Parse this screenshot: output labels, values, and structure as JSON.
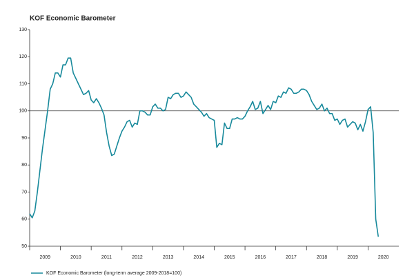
{
  "chart_data": {
    "type": "line",
    "title": "KOF Economic Barometer",
    "x": [
      2009,
      2009.083,
      2009.167,
      2009.25,
      2009.333,
      2009.417,
      2009.5,
      2009.583,
      2009.667,
      2009.75,
      2009.833,
      2009.917,
      2010,
      2010.083,
      2010.167,
      2010.25,
      2010.333,
      2010.417,
      2010.5,
      2010.583,
      2010.667,
      2010.75,
      2010.833,
      2010.917,
      2011,
      2011.083,
      2011.167,
      2011.25,
      2011.333,
      2011.417,
      2011.5,
      2011.583,
      2011.667,
      2011.75,
      2011.833,
      2011.917,
      2012,
      2012.083,
      2012.167,
      2012.25,
      2012.333,
      2012.417,
      2012.5,
      2012.583,
      2012.667,
      2012.75,
      2012.833,
      2012.917,
      2013,
      2013.083,
      2013.167,
      2013.25,
      2013.333,
      2013.417,
      2013.5,
      2013.583,
      2013.667,
      2013.75,
      2013.833,
      2013.917,
      2014,
      2014.083,
      2014.167,
      2014.25,
      2014.333,
      2014.417,
      2014.5,
      2014.583,
      2014.667,
      2014.75,
      2014.833,
      2014.917,
      2015,
      2015.083,
      2015.167,
      2015.25,
      2015.333,
      2015.417,
      2015.5,
      2015.583,
      2015.667,
      2015.75,
      2015.833,
      2015.917,
      2016,
      2016.083,
      2016.167,
      2016.25,
      2016.333,
      2016.417,
      2016.5,
      2016.583,
      2016.667,
      2016.75,
      2016.833,
      2016.917,
      2017,
      2017.083,
      2017.167,
      2017.25,
      2017.333,
      2017.417,
      2017.5,
      2017.583,
      2017.667,
      2017.75,
      2017.833,
      2017.917,
      2018,
      2018.083,
      2018.167,
      2018.25,
      2018.333,
      2018.417,
      2018.5,
      2018.583,
      2018.667,
      2018.75,
      2018.833,
      2018.917,
      2019,
      2019.083,
      2019.167,
      2019.25,
      2019.333,
      2019.417,
      2019.5,
      2019.583,
      2019.667,
      2019.75,
      2019.833,
      2019.917,
      2020,
      2020.083,
      2020.167,
      2020.25,
      2020.333
    ],
    "series": [
      {
        "name": "KOF Economic Barometer (long-term average 2009-2018=100)",
        "color": "#17899b",
        "values": [
          62,
          60.5,
          63,
          70,
          78,
          86,
          93,
          100,
          108,
          110,
          114,
          114,
          112.5,
          117,
          117,
          119.5,
          119.5,
          114,
          112,
          110,
          108,
          106,
          106.5,
          107.5,
          104,
          103,
          104.5,
          103,
          101,
          98.5,
          92,
          87,
          83.5,
          84,
          87,
          90,
          92.5,
          94,
          96,
          96.5,
          94,
          95.5,
          95,
          100,
          100,
          99.5,
          98.5,
          98.5,
          101.5,
          102.5,
          101,
          101,
          100,
          100.5,
          105,
          104.5,
          106,
          106.5,
          106.5,
          105,
          105.5,
          107,
          106,
          105,
          102.5,
          101.5,
          100.5,
          99.5,
          98,
          99,
          97.5,
          97,
          96.5,
          86.5,
          88,
          87.5,
          95.5,
          93.5,
          93.5,
          97,
          97,
          97.5,
          97,
          97,
          98,
          100,
          101.5,
          103.5,
          100.5,
          101,
          103.5,
          99,
          100.5,
          102,
          100.5,
          103.5,
          103,
          105.5,
          105,
          107,
          106.5,
          108.5,
          108,
          106.5,
          106.5,
          107,
          108,
          108,
          107.5,
          106,
          103.5,
          102,
          100.5,
          101,
          102.5,
          100,
          101,
          99,
          99,
          96.5,
          97,
          95,
          96.5,
          97,
          94,
          95,
          96,
          95.5,
          93,
          95,
          92.5,
          96,
          100.5,
          101.5,
          92,
          60,
          53.5
        ]
      }
    ],
    "xlim": [
      2009,
      2021
    ],
    "xticks": [
      {
        "value": 2009.5,
        "label": "2009"
      },
      {
        "value": 2010.5,
        "label": "2010"
      },
      {
        "value": 2011.5,
        "label": "2011"
      },
      {
        "value": 2012.5,
        "label": "2012"
      },
      {
        "value": 2013.5,
        "label": "2013"
      },
      {
        "value": 2014.5,
        "label": "2014"
      },
      {
        "value": 2015.5,
        "label": "2015"
      },
      {
        "value": 2016.5,
        "label": "2016"
      },
      {
        "value": 2017.5,
        "label": "2017"
      },
      {
        "value": 2018.5,
        "label": "2018"
      },
      {
        "value": 2019.5,
        "label": "2019"
      },
      {
        "value": 2020.5,
        "label": "2020"
      }
    ],
    "ylim": [
      50,
      130
    ],
    "yticks": [
      50,
      60,
      70,
      80,
      90,
      100,
      110,
      120,
      130
    ],
    "reference_line": 100
  }
}
